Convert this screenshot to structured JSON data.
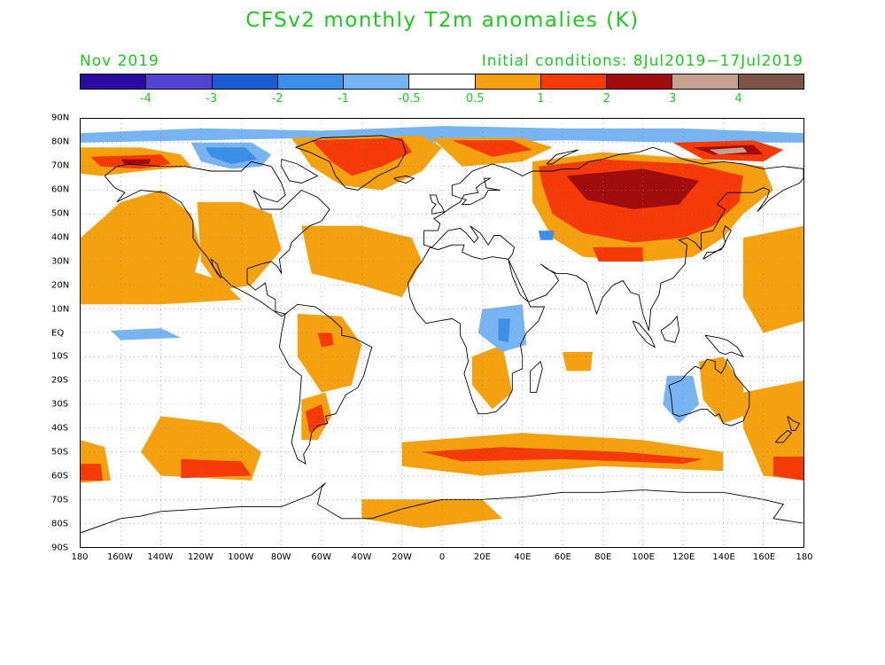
{
  "title": "CFSv2 monthly T2m anomalies (K)",
  "valid_month": "Nov 2019",
  "initial_conditions": "Initial conditions: 8Jul2019−17Jul2019",
  "colorbar": {
    "colors": [
      "#2c0ba0",
      "#5243d1",
      "#1a5cd0",
      "#3c8fe8",
      "#78b4f2",
      "#ffffff",
      "#f5a00f",
      "#f53a08",
      "#a10c0c",
      "#c8a08f",
      "#7c5446"
    ],
    "labels": [
      "-4",
      "-3",
      "-2",
      "-1",
      "-0.5",
      "0.5",
      "1",
      "2",
      "3",
      "4"
    ]
  },
  "axes": {
    "lat_labels": [
      "90N",
      "80N",
      "70N",
      "60N",
      "50N",
      "40N",
      "30N",
      "20N",
      "10N",
      "EQ",
      "10S",
      "20S",
      "30S",
      "40S",
      "50S",
      "60S",
      "70S",
      "80S",
      "90S"
    ],
    "lon_labels": [
      "180",
      "160W",
      "140W",
      "120W",
      "100W",
      "80W",
      "60W",
      "40W",
      "20W",
      "0",
      "20E",
      "40E",
      "60E",
      "80E",
      "100E",
      "120E",
      "140E",
      "160E",
      "180"
    ]
  },
  "anomaly_regions": [
    {
      "name": "arctic-polar-band",
      "level": "-0.5..-1",
      "color": "#78b4f2",
      "points": [
        [
          -180,
          84
        ],
        [
          -120,
          86
        ],
        [
          -60,
          85
        ],
        [
          0,
          87
        ],
        [
          60,
          86
        ],
        [
          120,
          86
        ],
        [
          180,
          84
        ],
        [
          180,
          80
        ],
        [
          120,
          80
        ],
        [
          60,
          81
        ],
        [
          0,
          80
        ],
        [
          -60,
          82
        ],
        [
          -120,
          81
        ],
        [
          -180,
          80
        ]
      ]
    },
    {
      "name": "bering-alaska-warm",
      "level": "0.5..1",
      "color": "#f5a00f",
      "points": [
        [
          -180,
          78
        ],
        [
          -150,
          78
        ],
        [
          -130,
          75
        ],
        [
          -125,
          70
        ],
        [
          -150,
          68
        ],
        [
          -170,
          66
        ],
        [
          -180,
          67
        ]
      ]
    },
    {
      "name": "alaska-strong",
      "level": "1..2",
      "color": "#f53a08",
      "points": [
        [
          -175,
          74
        ],
        [
          -140,
          75
        ],
        [
          -135,
          71
        ],
        [
          -150,
          69
        ],
        [
          -170,
          70
        ]
      ]
    },
    {
      "name": "alaska-core",
      "level": "2..3",
      "color": "#a10c0c",
      "points": [
        [
          -160,
          73
        ],
        [
          -145,
          73
        ],
        [
          -146,
          71
        ],
        [
          -158,
          71
        ]
      ]
    },
    {
      "name": "canada-arctic-cool",
      "level": "-0.5..-1",
      "color": "#78b4f2",
      "points": [
        [
          -125,
          80
        ],
        [
          -95,
          80
        ],
        [
          -85,
          75
        ],
        [
          -90,
          70
        ],
        [
          -105,
          69
        ],
        [
          -120,
          72
        ]
      ]
    },
    {
      "name": "canada-arctic-cooler",
      "level": "-1..-2",
      "color": "#3c8fe8",
      "points": [
        [
          -118,
          78
        ],
        [
          -98,
          78
        ],
        [
          -92,
          73
        ],
        [
          -105,
          71
        ],
        [
          -115,
          74
        ]
      ]
    },
    {
      "name": "greenland-warm",
      "level": "0.5..1",
      "color": "#f5a00f",
      "points": [
        [
          -75,
          82
        ],
        [
          -10,
          83
        ],
        [
          0,
          78
        ],
        [
          -10,
          68
        ],
        [
          -30,
          60
        ],
        [
          -50,
          62
        ],
        [
          -65,
          70
        ]
      ]
    },
    {
      "name": "greenland-strong",
      "level": "1..2",
      "color": "#f53a08",
      "points": [
        [
          -65,
          81
        ],
        [
          -20,
          82
        ],
        [
          -15,
          76
        ],
        [
          -30,
          70
        ],
        [
          -45,
          66
        ],
        [
          -55,
          72
        ]
      ]
    },
    {
      "name": "barents-warm",
      "level": "0.5..1",
      "color": "#f5a00f",
      "points": [
        [
          -5,
          82
        ],
        [
          40,
          82
        ],
        [
          55,
          78
        ],
        [
          40,
          72
        ],
        [
          10,
          70
        ]
      ]
    },
    {
      "name": "barents-strong",
      "level": "1..2",
      "color": "#f53a08",
      "points": [
        [
          5,
          81
        ],
        [
          35,
          81
        ],
        [
          45,
          77
        ],
        [
          25,
          74
        ]
      ]
    },
    {
      "name": "siberia-warm",
      "level": "0.5..1",
      "color": "#f5a00f",
      "points": [
        [
          45,
          72
        ],
        [
          80,
          76
        ],
        [
          130,
          73
        ],
        [
          160,
          70
        ],
        [
          165,
          60
        ],
        [
          150,
          50
        ],
        [
          140,
          40
        ],
        [
          125,
          32
        ],
        [
          100,
          30
        ],
        [
          70,
          32
        ],
        [
          55,
          40
        ],
        [
          45,
          55
        ]
      ]
    },
    {
      "name": "siberia-strong",
      "level": "1..2",
      "color": "#f53a08",
      "points": [
        [
          48,
          70
        ],
        [
          80,
          73
        ],
        [
          125,
          71
        ],
        [
          150,
          66
        ],
        [
          148,
          55
        ],
        [
          135,
          45
        ],
        [
          120,
          40
        ],
        [
          95,
          38
        ],
        [
          70,
          42
        ],
        [
          55,
          50
        ],
        [
          50,
          62
        ]
      ]
    },
    {
      "name": "siberia-core",
      "level": "2..3",
      "color": "#a10c0c",
      "points": [
        [
          62,
          66
        ],
        [
          100,
          69
        ],
        [
          128,
          64
        ],
        [
          118,
          54
        ],
        [
          95,
          52
        ],
        [
          72,
          56
        ]
      ]
    },
    {
      "name": "east-siberia-arctic",
      "level": "1..2",
      "color": "#f53a08",
      "points": [
        [
          115,
          80
        ],
        [
          155,
          81
        ],
        [
          170,
          77
        ],
        [
          160,
          72
        ],
        [
          130,
          73
        ]
      ]
    },
    {
      "name": "east-siberia-core",
      "level": "2..3",
      "color": "#a10c0c",
      "points": [
        [
          125,
          78
        ],
        [
          155,
          79
        ],
        [
          160,
          75
        ],
        [
          135,
          75
        ]
      ]
    },
    {
      "name": "east-siberia-peak",
      "level": "3..4",
      "color": "#c8a08f",
      "points": [
        [
          133,
          77
        ],
        [
          150,
          78
        ],
        [
          152,
          76
        ],
        [
          138,
          75
        ]
      ]
    },
    {
      "name": "north-pacific-warm",
      "level": "0.5..1",
      "color": "#f5a00f",
      "points": [
        [
          -180,
          40
        ],
        [
          -160,
          55
        ],
        [
          -140,
          60
        ],
        [
          -125,
          50
        ],
        [
          -120,
          35
        ],
        [
          -125,
          20
        ],
        [
          -150,
          12
        ],
        [
          -180,
          15
        ]
      ]
    },
    {
      "name": "na-west-warm",
      "level": "0.5..1",
      "color": "#f5a00f",
      "points": [
        [
          -122,
          55
        ],
        [
          -100,
          55
        ],
        [
          -85,
          50
        ],
        [
          -80,
          35
        ],
        [
          -95,
          20
        ],
        [
          -110,
          18
        ],
        [
          -120,
          30
        ]
      ]
    },
    {
      "name": "atlantic-warm",
      "level": "0.5..1",
      "color": "#f5a00f",
      "points": [
        [
          -70,
          45
        ],
        [
          -40,
          45
        ],
        [
          -15,
          40
        ],
        [
          -10,
          30
        ],
        [
          -20,
          15
        ],
        [
          -40,
          20
        ],
        [
          -65,
          25
        ]
      ]
    },
    {
      "name": "pacific-east-tropics",
      "level": "0.5..1",
      "color": "#f5a00f",
      "points": [
        [
          -180,
          28
        ],
        [
          -140,
          30
        ],
        [
          -110,
          22
        ],
        [
          -100,
          14
        ],
        [
          -140,
          12
        ],
        [
          -180,
          12
        ]
      ]
    },
    {
      "name": "indonesia-pacific-warm",
      "level": "0.5..1",
      "color": "#f5a00f",
      "points": [
        [
          150,
          40
        ],
        [
          180,
          45
        ],
        [
          180,
          5
        ],
        [
          160,
          0
        ],
        [
          150,
          15
        ]
      ]
    },
    {
      "name": "amazon-warm",
      "level": "0.5..1",
      "color": "#f5a00f",
      "points": [
        [
          -72,
          8
        ],
        [
          -50,
          7
        ],
        [
          -40,
          -5
        ],
        [
          -45,
          -22
        ],
        [
          -60,
          -25
        ],
        [
          -72,
          -10
        ]
      ]
    },
    {
      "name": "amazon-strong",
      "level": "1..2",
      "color": "#f53a08",
      "points": [
        [
          -62,
          0
        ],
        [
          -55,
          0
        ],
        [
          -54,
          -5
        ],
        [
          -60,
          -6
        ]
      ]
    },
    {
      "name": "argentina-warm",
      "level": "0.5..1",
      "color": "#f5a00f",
      "points": [
        [
          -70,
          -28
        ],
        [
          -58,
          -25
        ],
        [
          -55,
          -35
        ],
        [
          -62,
          -45
        ],
        [
          -70,
          -45
        ]
      ]
    },
    {
      "name": "argentina-strong",
      "level": "1..2",
      "color": "#f53a08",
      "points": [
        [
          -68,
          -33
        ],
        [
          -60,
          -30
        ],
        [
          -58,
          -38
        ],
        [
          -66,
          -42
        ]
      ]
    },
    {
      "name": "s-pacific-warm",
      "level": "0.5..1",
      "color": "#f5a00f",
      "points": [
        [
          -140,
          -35
        ],
        [
          -110,
          -38
        ],
        [
          -90,
          -50
        ],
        [
          -95,
          -62
        ],
        [
          -140,
          -60
        ],
        [
          -150,
          -50
        ]
      ]
    },
    {
      "name": "s-pacific-strong",
      "level": "1..2",
      "color": "#f53a08",
      "points": [
        [
          -130,
          -53
        ],
        [
          -100,
          -54
        ],
        [
          -95,
          -60
        ],
        [
          -130,
          -61
        ]
      ]
    },
    {
      "name": "s-ocean-west",
      "level": "0.5..1",
      "color": "#f5a00f",
      "points": [
        [
          -180,
          -45
        ],
        [
          -168,
          -48
        ],
        [
          -165,
          -62
        ],
        [
          -180,
          -63
        ]
      ]
    },
    {
      "name": "s-ocean-west-strong",
      "level": "1..2",
      "color": "#f53a08",
      "points": [
        [
          -180,
          -55
        ],
        [
          -170,
          -55
        ],
        [
          -169,
          -62
        ],
        [
          -180,
          -62
        ]
      ]
    },
    {
      "name": "s-indian-band",
      "level": "0.5..1",
      "color": "#f5a00f",
      "points": [
        [
          -20,
          -46
        ],
        [
          40,
          -42
        ],
        [
          100,
          -45
        ],
        [
          140,
          -50
        ],
        [
          140,
          -58
        ],
        [
          80,
          -56
        ],
        [
          20,
          -60
        ],
        [
          -20,
          -56
        ]
      ]
    },
    {
      "name": "s-indian-strong",
      "level": "1..2",
      "color": "#f53a08",
      "points": [
        [
          -10,
          -50
        ],
        [
          30,
          -48
        ],
        [
          90,
          -50
        ],
        [
          130,
          -53
        ],
        [
          120,
          -55
        ],
        [
          60,
          -53
        ],
        [
          10,
          -54
        ]
      ]
    },
    {
      "name": "antarctic-coast-warm",
      "level": "0.5..1",
      "color": "#f5a00f",
      "points": [
        [
          -40,
          -70
        ],
        [
          20,
          -70
        ],
        [
          30,
          -78
        ],
        [
          -10,
          -82
        ],
        [
          -40,
          -78
        ]
      ]
    },
    {
      "name": "se-pacific-aus",
      "level": "0.5..1",
      "color": "#f5a00f",
      "points": [
        [
          150,
          -25
        ],
        [
          180,
          -20
        ],
        [
          180,
          -62
        ],
        [
          160,
          -60
        ],
        [
          150,
          -40
        ]
      ]
    },
    {
      "name": "se-pacific-aus-strong",
      "level": "1..2",
      "color": "#f53a08",
      "points": [
        [
          165,
          -52
        ],
        [
          180,
          -52
        ],
        [
          180,
          -62
        ],
        [
          165,
          -60
        ]
      ]
    },
    {
      "name": "africa-warm",
      "level": "0.5..1",
      "color": "#f5a00f",
      "points": [
        [
          15,
          -10
        ],
        [
          30,
          -5
        ],
        [
          35,
          -25
        ],
        [
          25,
          -32
        ],
        [
          15,
          -22
        ]
      ]
    },
    {
      "name": "indian-ocean-warm",
      "level": "0.5..1",
      "color": "#f5a00f",
      "points": [
        [
          60,
          -8
        ],
        [
          75,
          -8
        ],
        [
          74,
          -16
        ],
        [
          62,
          -16
        ]
      ]
    },
    {
      "name": "australia-warm",
      "level": "0.5..1",
      "color": "#f5a00f",
      "points": [
        [
          128,
          -12
        ],
        [
          140,
          -10
        ],
        [
          150,
          -22
        ],
        [
          150,
          -35
        ],
        [
          140,
          -38
        ],
        [
          130,
          -28
        ]
      ]
    },
    {
      "name": "australia-cool",
      "level": "-0.5..-1",
      "color": "#78b4f2",
      "points": [
        [
          112,
          -18
        ],
        [
          125,
          -18
        ],
        [
          128,
          -30
        ],
        [
          118,
          -38
        ],
        [
          110,
          -30
        ]
      ]
    },
    {
      "name": "pacific-eq-cool",
      "level": "-0.5..-1",
      "color": "#78b4f2",
      "points": [
        [
          -165,
          1
        ],
        [
          -140,
          2
        ],
        [
          -130,
          -2
        ],
        [
          -160,
          -3
        ]
      ]
    },
    {
      "name": "east-africa-cool",
      "level": "-0.5..-1",
      "color": "#78b4f2",
      "points": [
        [
          20,
          10
        ],
        [
          40,
          12
        ],
        [
          42,
          -5
        ],
        [
          30,
          -8
        ],
        [
          18,
          0
        ]
      ]
    },
    {
      "name": "east-africa-cooler",
      "level": "-1..-2",
      "color": "#3c8fe8",
      "points": [
        [
          28,
          6
        ],
        [
          34,
          6
        ],
        [
          33,
          -4
        ],
        [
          28,
          -3
        ]
      ]
    },
    {
      "name": "caspian-cool",
      "level": "-1..-2",
      "color": "#3c8fe8",
      "points": [
        [
          48,
          43
        ],
        [
          56,
          43
        ],
        [
          55,
          39
        ],
        [
          49,
          39
        ]
      ]
    },
    {
      "name": "tibet-mix",
      "level": "1..2",
      "color": "#f53a08",
      "points": [
        [
          75,
          36
        ],
        [
          100,
          36
        ],
        [
          100,
          30
        ],
        [
          78,
          30
        ]
      ]
    }
  ]
}
